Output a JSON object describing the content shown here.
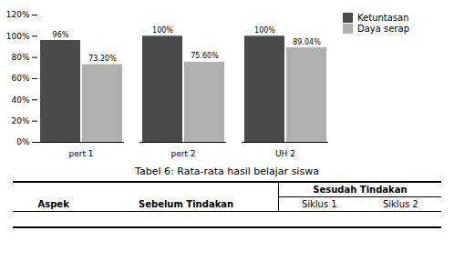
{
  "chart_data": {
    "type": "bar",
    "categories": [
      "pert 1",
      "pert 2",
      "UH 2"
    ],
    "series": [
      {
        "name": "Ketuntasan",
        "color": "#4a4a4a",
        "values": [
          96,
          100,
          100
        ],
        "value_labels": [
          "96%",
          "100%",
          "100%"
        ]
      },
      {
        "name": "Daya serap",
        "color": "#b0b0b0",
        "values": [
          73.2,
          75.6,
          89.04
        ],
        "value_labels": [
          "73.20%",
          "75.60%",
          "89.04%"
        ]
      }
    ],
    "ylim": [
      0,
      120
    ],
    "yticks": [
      {
        "value": 0,
        "label": "0%"
      },
      {
        "value": 20,
        "label": "20%"
      },
      {
        "value": 40,
        "label": "40%"
      },
      {
        "value": 60,
        "label": "60%"
      },
      {
        "value": 80,
        "label": "80%"
      },
      {
        "value": 100,
        "label": "100%"
      },
      {
        "value": 120,
        "label": "120%"
      }
    ],
    "data_labels": true,
    "grid": false,
    "legend": "right",
    "annotations": [
      "Tabel 6: Rata-rata hasil belajar siswa",
      "Sesudah Tindakan",
      "Aspek",
      "Sebelum Tindakan",
      "Siklus 1",
      "Siklus 2"
    ]
  }
}
